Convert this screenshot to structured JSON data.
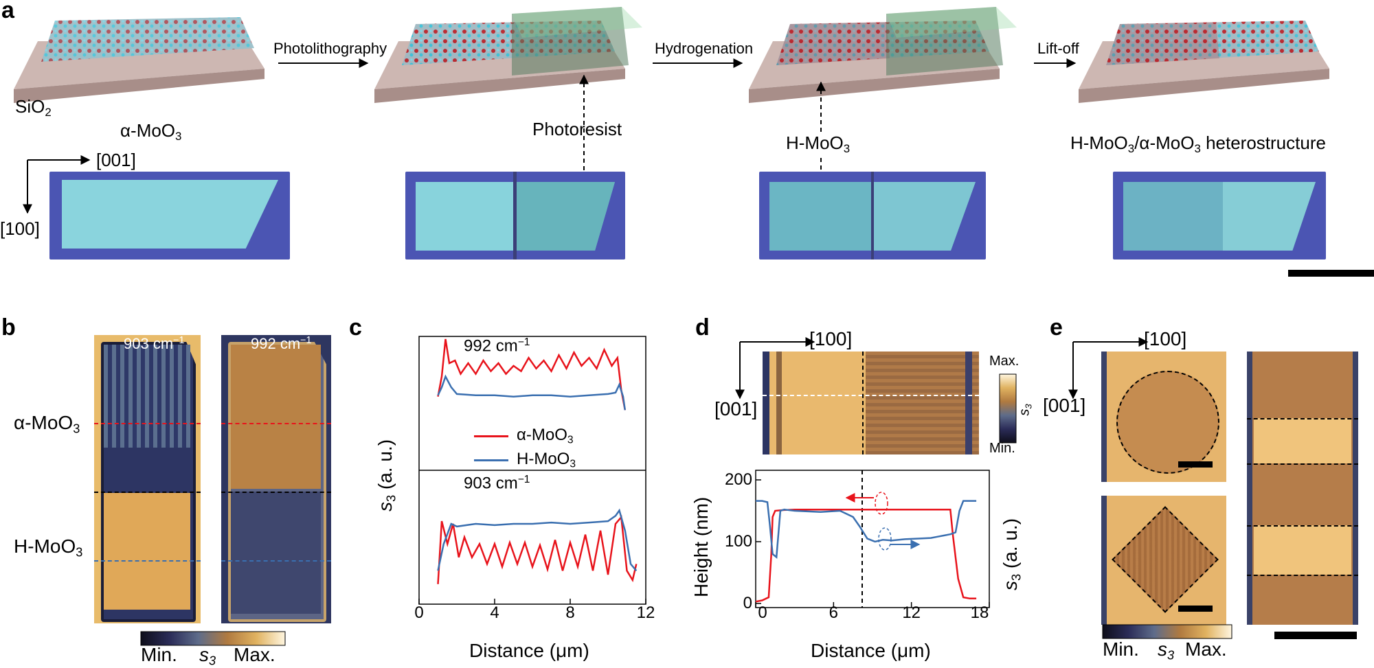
{
  "panel_a": {
    "label": "a",
    "steps": [
      "Photolithography",
      "Hydrogenation",
      "Lift-off"
    ],
    "substrate": {
      "main": "SiO",
      "sub": "2"
    },
    "captions": {
      "alpha": {
        "pre": "α-MoO",
        "sub": "3"
      },
      "photoresist": "Photoresist",
      "h": {
        "pre": "H-MoO",
        "sub": "3"
      },
      "hetero": {
        "p1": "H-MoO",
        "s1": "3",
        "p2": "/α-MoO",
        "s2": "3",
        "p3": " heterostructure"
      }
    },
    "axes": {
      "horizontal": "[001]",
      "vertical": "[100]"
    }
  },
  "panel_b": {
    "label": "b",
    "freq1": "903 cm",
    "freq2": "992 cm",
    "sup": "−1",
    "alpha": {
      "pre": "α-MoO",
      "sub": "3"
    },
    "h": {
      "pre": "H-MoO",
      "sub": "3"
    },
    "colorbar": {
      "min": "Min.",
      "mid": "s",
      "mid_sub": "3",
      "max": "Max."
    }
  },
  "panel_c": {
    "label": "c",
    "top_label": "992 cm",
    "bottom_label": "903 cm",
    "sup": "−1",
    "ylabel": "s",
    "ylabel_sub": "3",
    "ylabel_rest": " (a. u.)",
    "xlabel": "Distance (μm)",
    "legend": [
      {
        "pre": "α-MoO",
        "sub": "3",
        "color": "#e8131b"
      },
      {
        "pre": "H-MoO",
        "sub": "3",
        "color": "#3a6fb0"
      }
    ]
  },
  "panel_d": {
    "label": "d",
    "axes": {
      "horizontal": "[100]",
      "vertical": "[001]"
    },
    "colorbar": {
      "max": "Max.",
      "min": "Min.",
      "mid": "s",
      "mid_sub": "3"
    },
    "ylabel": "Height (nm)",
    "y2label": "s",
    "y2label_sub": "3",
    "y2label_rest": " (a. u.)",
    "xlabel": "Distance (μm)"
  },
  "panel_e": {
    "label": "e",
    "axes": {
      "horizontal": "[100]",
      "vertical": "[001]"
    },
    "colorbar": {
      "min": "Min.",
      "mid": "s",
      "mid_sub": "3",
      "max": "Max."
    }
  },
  "chart_data": [
    {
      "type": "line",
      "title": "992 cm−1",
      "xlabel": "Distance (μm)",
      "ylabel": "s3 (a. u.)",
      "xlim": [
        0,
        12
      ],
      "xticks": [
        "0",
        "4",
        "8",
        "12"
      ],
      "series": [
        {
          "name": "α-MoO3",
          "color": "#e8131b",
          "x": [
            1.0,
            1.2,
            1.4,
            1.6,
            1.9,
            2.2,
            2.6,
            3.0,
            3.4,
            3.8,
            4.2,
            4.6,
            5.0,
            5.4,
            5.8,
            6.2,
            6.6,
            7.0,
            7.4,
            7.8,
            8.2,
            8.6,
            9.0,
            9.4,
            9.8,
            10.2,
            10.5,
            10.7,
            10.9
          ],
          "y": [
            0.55,
            0.7,
            0.98,
            0.8,
            0.82,
            0.72,
            0.8,
            0.72,
            0.82,
            0.74,
            0.8,
            0.72,
            0.78,
            0.74,
            0.84,
            0.76,
            0.82,
            0.74,
            0.86,
            0.76,
            0.88,
            0.78,
            0.84,
            0.76,
            0.9,
            0.78,
            0.84,
            0.6,
            0.45
          ]
        },
        {
          "name": "H-MoO3",
          "color": "#3a6fb0",
          "x": [
            1.0,
            1.2,
            1.4,
            1.7,
            2.0,
            3.0,
            4.0,
            5.0,
            6.0,
            7.0,
            8.0,
            9.0,
            10.0,
            10.4,
            10.6,
            10.8,
            10.9
          ],
          "y": [
            0.56,
            0.62,
            0.7,
            0.62,
            0.57,
            0.56,
            0.56,
            0.55,
            0.56,
            0.56,
            0.55,
            0.56,
            0.57,
            0.58,
            0.64,
            0.55,
            0.45
          ]
        }
      ]
    },
    {
      "type": "line",
      "title": "903 cm−1",
      "xlabel": "Distance (μm)",
      "ylabel": "s3 (a. u.)",
      "xlim": [
        0,
        12
      ],
      "xticks": [
        "0",
        "4",
        "8",
        "12"
      ],
      "series": [
        {
          "name": "α-MoO3",
          "color": "#e8131b",
          "x": [
            1.0,
            1.2,
            1.5,
            1.8,
            2.1,
            2.4,
            2.8,
            3.2,
            3.6,
            4.0,
            4.4,
            4.8,
            5.2,
            5.6,
            6.0,
            6.4,
            6.8,
            7.2,
            7.6,
            8.0,
            8.4,
            8.8,
            9.2,
            9.6,
            10.0,
            10.4,
            10.7,
            11.0,
            11.3,
            11.5
          ],
          "y": [
            0.15,
            0.62,
            0.45,
            0.6,
            0.35,
            0.5,
            0.35,
            0.45,
            0.3,
            0.45,
            0.28,
            0.46,
            0.3,
            0.46,
            0.28,
            0.44,
            0.26,
            0.48,
            0.25,
            0.46,
            0.28,
            0.52,
            0.25,
            0.55,
            0.22,
            0.6,
            0.65,
            0.25,
            0.18,
            0.3
          ]
        },
        {
          "name": "H-MoO3",
          "color": "#3a6fb0",
          "x": [
            1.0,
            1.3,
            1.7,
            2.0,
            3.0,
            4.0,
            5.0,
            6.0,
            7.0,
            8.0,
            9.0,
            10.0,
            10.4,
            10.6,
            10.9,
            11.2,
            11.5
          ],
          "y": [
            0.25,
            0.45,
            0.6,
            0.58,
            0.6,
            0.59,
            0.6,
            0.6,
            0.61,
            0.6,
            0.61,
            0.62,
            0.66,
            0.7,
            0.55,
            0.3,
            0.25
          ]
        }
      ]
    },
    {
      "type": "line",
      "title": "",
      "xlabel": "Distance (μm)",
      "ylabel": "Height (nm)",
      "xlim": [
        0,
        18
      ],
      "ylim": [
        0,
        200
      ],
      "xticks": [
        "0",
        "6",
        "12",
        "18"
      ],
      "yticks": [
        "0",
        "100",
        "200"
      ],
      "series": [
        {
          "name": "Height",
          "color": "#e8131b",
          "x": [
            0,
            0.5,
            1.0,
            1.2,
            1.3,
            1.5,
            2.0,
            3.0,
            5.0,
            8.0,
            10.0,
            12.0,
            14.0,
            15.0,
            15.2,
            15.6,
            16.0,
            16.5,
            17.0
          ],
          "y": [
            3,
            5,
            10,
            80,
            140,
            150,
            151,
            152,
            152,
            152,
            152,
            152,
            152,
            152,
            110,
            40,
            10,
            8,
            8
          ]
        },
        {
          "name": "s3",
          "color": "#3a6fb0",
          "x": [
            0,
            0.5,
            0.9,
            1.1,
            1.3,
            1.6,
            1.9,
            2.2,
            3.0,
            5.0,
            6.5,
            7.5,
            8.0,
            8.6,
            9.2,
            9.8,
            10.5,
            11.5,
            12.5,
            13.5,
            14.0,
            14.5,
            15.0,
            15.4,
            15.7,
            16.0,
            16.5,
            17.0
          ],
          "y": [
            166,
            166,
            164,
            125,
            80,
            75,
            150,
            152,
            150,
            148,
            150,
            140,
            125,
            105,
            100,
            103,
            102,
            104,
            105,
            106,
            108,
            110,
            112,
            115,
            150,
            166,
            166,
            166
          ]
        }
      ]
    }
  ]
}
